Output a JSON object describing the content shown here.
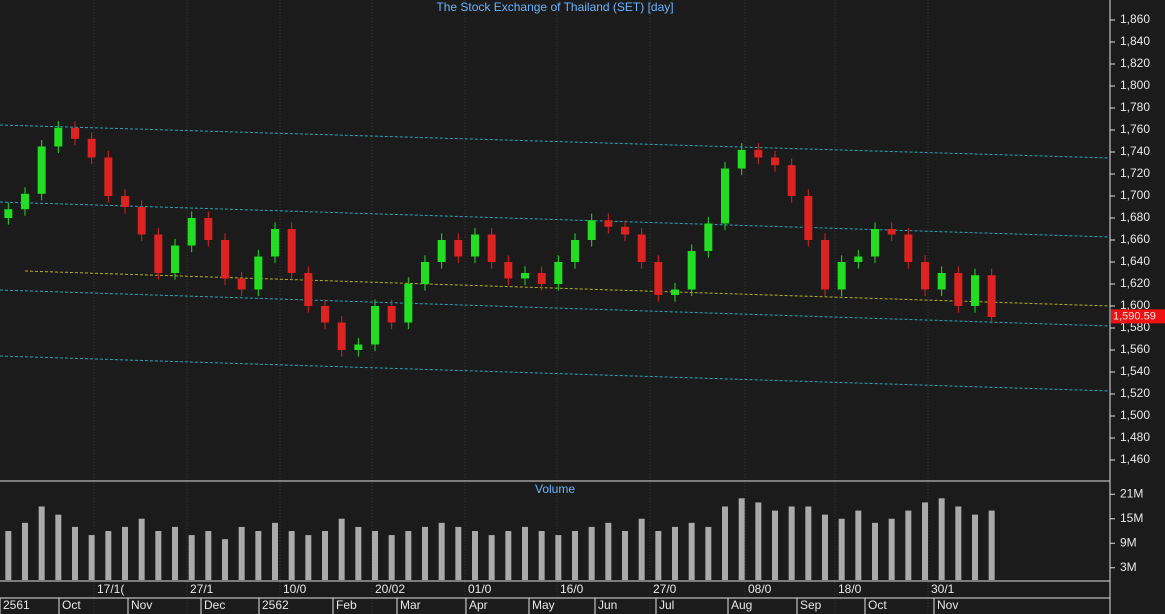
{
  "chart_data": [
    {
      "type": "candlestick",
      "title": "The Stock Exchange of Thailand (SET) [day]",
      "open": [
        1680,
        1688,
        1702,
        1745,
        1762,
        1752,
        1735,
        1700,
        1690,
        1665,
        1630,
        1655,
        1680,
        1660,
        1625,
        1615,
        1645,
        1670,
        1630,
        1600,
        1585,
        1560,
        1565,
        1600,
        1585,
        1620,
        1640,
        1660,
        1645,
        1665,
        1640,
        1625,
        1630,
        1620,
        1640,
        1660,
        1678,
        1672,
        1665,
        1640,
        1610,
        1615,
        1650,
        1675,
        1725,
        1742,
        1735,
        1728,
        1700,
        1660,
        1615,
        1640,
        1645,
        1670,
        1665,
        1640,
        1615,
        1630,
        1600,
        1628
      ],
      "high": [
        1694,
        1708,
        1751,
        1768,
        1768,
        1758,
        1741,
        1706,
        1696,
        1671,
        1661,
        1686,
        1686,
        1666,
        1631,
        1651,
        1676,
        1676,
        1636,
        1606,
        1591,
        1571,
        1606,
        1606,
        1626,
        1646,
        1666,
        1666,
        1671,
        1671,
        1646,
        1636,
        1636,
        1646,
        1666,
        1684,
        1684,
        1678,
        1671,
        1646,
        1621,
        1656,
        1681,
        1731,
        1748,
        1748,
        1741,
        1734,
        1706,
        1666,
        1646,
        1651,
        1676,
        1676,
        1671,
        1646,
        1636,
        1636,
        1634,
        1634
      ],
      "low": [
        1674,
        1682,
        1696,
        1739,
        1746,
        1729,
        1694,
        1684,
        1659,
        1624,
        1624,
        1649,
        1654,
        1619,
        1609,
        1609,
        1639,
        1624,
        1594,
        1579,
        1554,
        1554,
        1559,
        1579,
        1579,
        1614,
        1634,
        1639,
        1639,
        1634,
        1619,
        1619,
        1614,
        1614,
        1634,
        1654,
        1666,
        1659,
        1634,
        1604,
        1604,
        1609,
        1644,
        1669,
        1719,
        1729,
        1722,
        1694,
        1654,
        1609,
        1609,
        1634,
        1639,
        1659,
        1634,
        1609,
        1609,
        1594,
        1594,
        1584
      ],
      "close": [
        1688,
        1702,
        1745,
        1762,
        1752,
        1735,
        1700,
        1690,
        1665,
        1630,
        1655,
        1680,
        1660,
        1625,
        1615,
        1645,
        1670,
        1630,
        1600,
        1585,
        1560,
        1565,
        1600,
        1585,
        1620,
        1640,
        1660,
        1645,
        1665,
        1640,
        1625,
        1630,
        1620,
        1640,
        1660,
        1678,
        1672,
        1665,
        1640,
        1610,
        1615,
        1650,
        1675,
        1725,
        1742,
        1735,
        1728,
        1700,
        1660,
        1615,
        1640,
        1645,
        1670,
        1665,
        1640,
        1615,
        1630,
        1600,
        1628,
        1590
      ],
      "up_color": "#22dd22",
      "down_color": "#dd2222",
      "ylim": [
        1440,
        1870
      ],
      "yticks": [
        {
          "value": 1460,
          "label": "1,460"
        },
        {
          "value": 1480,
          "label": "1,480"
        },
        {
          "value": 1500,
          "label": "1,500"
        },
        {
          "value": 1520,
          "label": "1,520"
        },
        {
          "value": 1540,
          "label": "1,540"
        },
        {
          "value": 1560,
          "label": "1,560"
        },
        {
          "value": 1580,
          "label": "1,580"
        },
        {
          "value": 1600,
          "label": "1,600"
        },
        {
          "value": 1620,
          "label": "1,620"
        },
        {
          "value": 1640,
          "label": "1,640"
        },
        {
          "value": 1660,
          "label": "1,660"
        },
        {
          "value": 1680,
          "label": "1,680"
        },
        {
          "value": 1700,
          "label": "1,700"
        },
        {
          "value": 1720,
          "label": "1,720"
        },
        {
          "value": 1740,
          "label": "1,740"
        },
        {
          "value": 1760,
          "label": "1,760"
        },
        {
          "value": 1780,
          "label": "1,780"
        },
        {
          "value": 1800,
          "label": "1,800"
        },
        {
          "value": 1820,
          "label": "1,820"
        },
        {
          "value": 1840,
          "label": "1,840"
        },
        {
          "value": 1860,
          "label": "1,860"
        }
      ],
      "last_price": {
        "value": 1590.59,
        "label": "1,590.59"
      },
      "date_labels": [
        "17/1(",
        "27/1",
        "10/0",
        "20/02",
        "01/0",
        "16/0",
        "27/0",
        "08/0",
        "18/0",
        "30/1"
      ],
      "month_labels": [
        "2561",
        "Oct",
        "Nov",
        "Dec",
        "2562",
        "Feb",
        "Mar",
        "Apr",
        "May",
        "Jun",
        "Jul",
        "Aug",
        "Sep",
        "Oct",
        "Nov"
      ]
    },
    {
      "type": "bar",
      "title": "Volume",
      "color": "#aaaaaa",
      "values": [
        12,
        14,
        18,
        16,
        13,
        11,
        12,
        13,
        15,
        12,
        13,
        11,
        12,
        10,
        13,
        12,
        14,
        12,
        11,
        12,
        15,
        13,
        12,
        11,
        12,
        13,
        14,
        13,
        12,
        11,
        12,
        13,
        12,
        11,
        12,
        13,
        14,
        12,
        15,
        12,
        13,
        14,
        13,
        18,
        20,
        19,
        17,
        18,
        18,
        16,
        15,
        17,
        14,
        15,
        17,
        19,
        20,
        18,
        16,
        17
      ],
      "ylim": [
        0,
        24
      ],
      "yticks": [
        {
          "value": 3,
          "label": "3M"
        },
        {
          "value": 9,
          "label": "9M"
        },
        {
          "value": 15,
          "label": "15M"
        },
        {
          "value": 21,
          "label": "21M"
        }
      ]
    }
  ]
}
